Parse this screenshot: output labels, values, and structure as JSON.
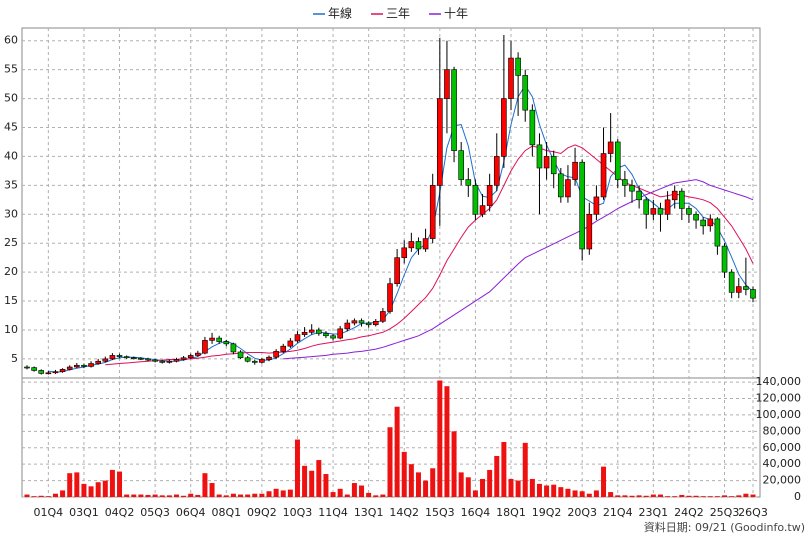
{
  "chart_data": {
    "type": "candlestick",
    "legend_position": "top",
    "grid": true,
    "up_color": "#ff0000",
    "down_color": "#00c000",
    "ylim": [
      1.7,
      62.2
    ],
    "yticks": [
      5,
      10,
      15,
      20,
      25,
      30,
      35,
      40,
      45,
      50,
      55,
      60
    ],
    "categories": [
      null,
      null,
      null,
      "01Q4",
      null,
      null,
      null,
      null,
      "03Q1",
      null,
      null,
      null,
      null,
      "04Q2",
      null,
      null,
      null,
      null,
      "05Q3",
      null,
      null,
      null,
      null,
      "06Q4",
      null,
      null,
      null,
      null,
      "08Q1",
      null,
      null,
      null,
      null,
      "09Q2",
      null,
      null,
      null,
      null,
      "10Q3",
      null,
      null,
      null,
      null,
      "11Q4",
      null,
      null,
      null,
      null,
      "13Q1",
      null,
      null,
      null,
      null,
      "14Q2",
      null,
      null,
      null,
      null,
      "15Q3",
      null,
      null,
      null,
      null,
      "16Q4",
      null,
      null,
      null,
      null,
      "18Q1",
      null,
      null,
      null,
      null,
      "19Q2",
      null,
      null,
      null,
      null,
      "20Q3",
      null,
      null,
      null,
      null,
      "21Q4",
      null,
      null,
      null,
      null,
      "23Q1",
      null,
      null,
      null,
      null,
      "24Q2",
      null,
      null,
      null,
      null,
      "25Q3",
      null,
      null,
      null,
      "26Q3"
    ],
    "open": [
      3.6,
      3.5,
      3.0,
      2.5,
      2.6,
      2.8,
      3.2,
      3.6,
      3.9,
      3.7,
      4.2,
      4.6,
      5.0,
      5.6,
      5.4,
      5.2,
      5.1,
      5.0,
      4.8,
      4.6,
      4.4,
      4.6,
      4.9,
      5.2,
      5.6,
      6.0,
      8.2,
      8.6,
      8.0,
      7.6,
      6.2,
      5.2,
      4.6,
      4.4,
      4.9,
      5.3,
      6.3,
      7.2,
      8.1,
      9.2,
      9.6,
      10.0,
      9.4,
      9.0,
      8.6,
      10.2,
      11.2,
      11.6,
      11.2,
      10.9,
      11.5,
      13.2,
      18.0,
      22.5,
      24.2,
      25.3,
      24.0,
      25.8,
      35.0,
      50.0,
      55.0,
      41.0,
      36.0,
      35.0,
      30.0,
      31.5,
      35.0,
      40.0,
      50.0,
      57.0,
      54.0,
      48.0,
      42.0,
      38.0,
      40.0,
      37.0,
      33.0,
      36.0,
      39.0,
      24.0,
      30.0,
      33.0,
      40.5,
      42.5,
      36.0,
      35.0,
      34.0,
      32.5,
      30.0,
      31.0,
      30.0,
      32.5,
      34.0,
      31.0,
      30.0,
      29.0,
      28.0,
      29.2,
      24.5,
      20.0,
      16.5,
      17.5,
      17.0
    ],
    "high": [
      3.9,
      3.7,
      3.2,
      2.9,
      3.1,
      3.4,
      3.9,
      4.3,
      4.2,
      4.6,
      5.0,
      5.4,
      6.0,
      5.9,
      5.6,
      5.4,
      5.3,
      5.2,
      5.0,
      4.8,
      4.9,
      5.2,
      5.5,
      5.9,
      6.4,
      8.8,
      9.5,
      9.0,
      8.3,
      7.8,
      6.5,
      5.5,
      4.9,
      5.2,
      5.6,
      6.7,
      7.6,
      8.6,
      9.8,
      10.5,
      11.0,
      10.4,
      9.8,
      9.3,
      10.7,
      11.8,
      12.0,
      12.0,
      11.5,
      11.9,
      13.8,
      19.0,
      24.0,
      25.5,
      26.8,
      26.0,
      27.5,
      37.0,
      60.5,
      60.0,
      55.5,
      42.5,
      38.0,
      36.0,
      33.5,
      37.0,
      44.0,
      61.0,
      60.0,
      58.0,
      55.0,
      49.0,
      44.0,
      42.5,
      41.0,
      38.0,
      38.5,
      41.5,
      39.5,
      32.0,
      35.0,
      45.0,
      47.5,
      43.0,
      37.5,
      36.0,
      35.0,
      33.0,
      32.5,
      32.0,
      34.0,
      35.0,
      34.5,
      31.5,
      30.5,
      29.5,
      30.0,
      29.5,
      25.0,
      20.5,
      19.0,
      22.5,
      17.5
    ],
    "low": [
      3.2,
      2.8,
      2.3,
      2.3,
      2.4,
      2.6,
      3.0,
      3.4,
      3.4,
      3.5,
      4.0,
      4.4,
      4.8,
      5.1,
      5.0,
      4.9,
      4.8,
      4.6,
      4.4,
      4.2,
      4.2,
      4.4,
      4.7,
      5.0,
      5.4,
      5.8,
      7.6,
      7.6,
      7.2,
      5.8,
      5.0,
      4.4,
      4.0,
      4.2,
      4.6,
      5.0,
      6.0,
      6.9,
      7.8,
      8.8,
      9.2,
      9.0,
      8.6,
      8.2,
      8.4,
      9.8,
      10.8,
      10.6,
      10.4,
      10.6,
      11.2,
      12.8,
      17.5,
      21.5,
      23.5,
      23.0,
      23.5,
      25.0,
      28.0,
      44.0,
      39.0,
      35.0,
      33.0,
      29.0,
      29.5,
      30.5,
      34.0,
      38.0,
      48.0,
      47.0,
      46.0,
      40.0,
      30.0,
      36.0,
      34.5,
      32.0,
      32.0,
      35.0,
      22.0,
      23.0,
      29.0,
      32.5,
      39.0,
      34.5,
      33.0,
      32.0,
      31.0,
      27.5,
      29.0,
      27.0,
      29.0,
      31.0,
      29.0,
      28.5,
      27.5,
      26.5,
      27.0,
      23.0,
      19.0,
      15.5,
      15.5,
      16.0,
      14.8
    ],
    "close": [
      3.5,
      3.0,
      2.5,
      2.6,
      2.8,
      3.2,
      3.6,
      3.9,
      3.7,
      4.2,
      4.6,
      5.0,
      5.6,
      5.4,
      5.2,
      5.1,
      5.0,
      4.8,
      4.6,
      4.4,
      4.6,
      4.9,
      5.2,
      5.6,
      6.0,
      8.2,
      8.6,
      8.0,
      7.6,
      6.2,
      5.2,
      4.6,
      4.4,
      4.9,
      5.3,
      6.3,
      7.2,
      8.1,
      9.2,
      9.6,
      10.0,
      9.4,
      9.0,
      8.6,
      10.2,
      11.2,
      11.6,
      11.2,
      10.9,
      11.5,
      13.2,
      18.0,
      22.5,
      24.2,
      25.3,
      24.0,
      25.8,
      35.0,
      50.0,
      55.0,
      41.0,
      36.0,
      35.0,
      30.0,
      31.5,
      35.0,
      40.0,
      50.0,
      57.0,
      54.0,
      48.0,
      42.0,
      38.0,
      40.0,
      37.0,
      33.0,
      36.0,
      39.0,
      24.0,
      30.0,
      33.0,
      40.5,
      42.5,
      36.0,
      35.0,
      34.0,
      32.5,
      30.0,
      31.0,
      30.0,
      32.5,
      34.0,
      31.0,
      30.0,
      29.0,
      28.0,
      29.2,
      24.5,
      20.0,
      16.5,
      17.5,
      17.0,
      15.5
    ],
    "moving_averages": [
      {
        "name": "年線",
        "color": "#1f6fd0",
        "values": [
          null,
          null,
          null,
          2.9,
          2.7,
          2.8,
          3.1,
          3.4,
          3.6,
          3.9,
          4.1,
          4.4,
          4.9,
          5.2,
          5.3,
          5.3,
          5.2,
          5.0,
          4.9,
          4.7,
          4.6,
          4.6,
          4.8,
          5.1,
          5.4,
          6.3,
          7.1,
          7.7,
          8.1,
          7.6,
          6.8,
          5.9,
          5.1,
          4.8,
          4.8,
          5.2,
          5.9,
          6.7,
          7.7,
          8.5,
          9.2,
          9.6,
          9.5,
          9.3,
          9.3,
          9.8,
          10.4,
          11.1,
          11.2,
          11.3,
          11.7,
          13.4,
          16.3,
          19.5,
          22.5,
          24.0,
          24.8,
          27.5,
          33.7,
          41.5,
          45.3,
          45.5,
          41.8,
          35.5,
          33.1,
          32.9,
          34.1,
          39.1,
          45.5,
          50.3,
          52.3,
          50.3,
          45.5,
          42.0,
          39.3,
          37.0,
          36.5,
          36.3,
          33.0,
          32.3,
          31.5,
          31.9,
          36.5,
          38.0,
          38.5,
          36.9,
          34.4,
          32.9,
          31.9,
          30.9,
          30.9,
          31.9,
          31.9,
          31.9,
          31.0,
          29.5,
          29.1,
          27.7,
          25.4,
          22.6,
          19.6,
          17.8,
          16.6
        ]
      },
      {
        "name": "三年",
        "color": "#e0105a",
        "values": [
          null,
          null,
          null,
          null,
          null,
          null,
          null,
          null,
          null,
          null,
          null,
          4.0,
          4.1,
          4.2,
          4.3,
          4.4,
          4.5,
          4.6,
          4.7,
          4.8,
          4.9,
          4.9,
          5.0,
          5.0,
          5.1,
          5.3,
          5.5,
          5.6,
          5.8,
          5.9,
          6.0,
          6.1,
          6.1,
          6.1,
          6.0,
          6.1,
          6.2,
          6.3,
          6.5,
          6.8,
          7.2,
          7.5,
          7.7,
          7.9,
          8.1,
          8.3,
          8.5,
          8.8,
          9.0,
          9.3,
          9.6,
          10.2,
          11.0,
          12.0,
          13.2,
          14.4,
          15.6,
          17.2,
          19.5,
          22.0,
          24.0,
          26.0,
          27.8,
          29.0,
          30.0,
          31.0,
          32.5,
          35.0,
          37.5,
          39.5,
          41.0,
          41.8,
          41.5,
          41.0,
          40.8,
          40.5,
          41.5,
          42.0,
          41.5,
          40.5,
          39.5,
          38.5,
          37.5,
          36.5,
          35.5,
          35.0,
          34.5,
          34.0,
          33.5,
          33.0,
          33.2,
          33.5,
          33.3,
          33.0,
          32.8,
          32.5,
          32.0,
          31.0,
          29.5,
          28.0,
          26.0,
          24.0,
          21.5
        ]
      },
      {
        "name": "十年",
        "color": "#8a20d8",
        "values": [
          null,
          null,
          null,
          null,
          null,
          null,
          null,
          null,
          null,
          null,
          null,
          null,
          null,
          null,
          null,
          null,
          null,
          null,
          null,
          null,
          null,
          null,
          null,
          null,
          null,
          null,
          null,
          null,
          null,
          null,
          null,
          null,
          null,
          null,
          null,
          null,
          5.0,
          5.1,
          5.2,
          5.3,
          5.4,
          5.5,
          5.6,
          5.8,
          5.9,
          6.0,
          6.2,
          6.3,
          6.5,
          6.7,
          7.0,
          7.4,
          7.8,
          8.2,
          8.6,
          9.0,
          9.6,
          10.2,
          11.0,
          11.8,
          12.6,
          13.4,
          14.2,
          15.0,
          15.8,
          16.6,
          17.8,
          19.0,
          20.2,
          21.4,
          22.5,
          23.1,
          23.7,
          24.3,
          24.9,
          25.5,
          26.1,
          26.7,
          27.3,
          28.0,
          28.8,
          29.5,
          30.2,
          31.0,
          31.6,
          32.2,
          32.8,
          33.4,
          33.9,
          34.4,
          34.9,
          35.4,
          35.6,
          35.8,
          36.0,
          35.6,
          35.0,
          34.6,
          34.2,
          33.8,
          33.4,
          33.0,
          32.5
        ]
      }
    ],
    "volume": {
      "color": "#ee1111",
      "ylim": [
        0,
        145000
      ],
      "yticks": [
        0,
        {
          "value": 20000,
          "label": "20,000"
        },
        {
          "value": 40000,
          "label": "40,000"
        },
        {
          "value": 60000,
          "label": "60,000"
        },
        {
          "value": 80000,
          "label": "80,000"
        },
        {
          "value": 100000,
          "label": "100,000"
        },
        {
          "value": 120000,
          "label": "120,000"
        },
        {
          "value": 140000,
          "label": "140,000"
        }
      ],
      "values": [
        3000,
        1000,
        1500,
        1000,
        4000,
        8000,
        29000,
        30000,
        16000,
        13000,
        18000,
        20000,
        33000,
        31000,
        3000,
        3000,
        3000,
        2500,
        3000,
        2000,
        2000,
        3000,
        1500,
        4000,
        2500,
        29000,
        17000,
        3000,
        2000,
        4000,
        3000,
        3000,
        4000,
        4000,
        7000,
        10000,
        8000,
        9000,
        70000,
        38000,
        32000,
        45000,
        28000,
        6000,
        10000,
        3000,
        17000,
        14000,
        5000,
        2000,
        3000,
        85000,
        110000,
        55000,
        40000,
        30000,
        20000,
        35000,
        142000,
        135000,
        80000,
        30000,
        24000,
        8000,
        22000,
        33000,
        50000,
        67000,
        22000,
        20000,
        66000,
        22000,
        16000,
        14000,
        15000,
        12000,
        10000,
        8000,
        7000,
        4000,
        8000,
        37000,
        6000,
        2000,
        2000,
        1500,
        2000,
        1500,
        3000,
        3000,
        1000,
        1000,
        2500,
        1500,
        1500,
        1000,
        1000,
        1000,
        2000,
        1000,
        2000,
        4000,
        3000
      ]
    },
    "footer": "資料日期: 09/21 (Goodinfo.tw)"
  }
}
